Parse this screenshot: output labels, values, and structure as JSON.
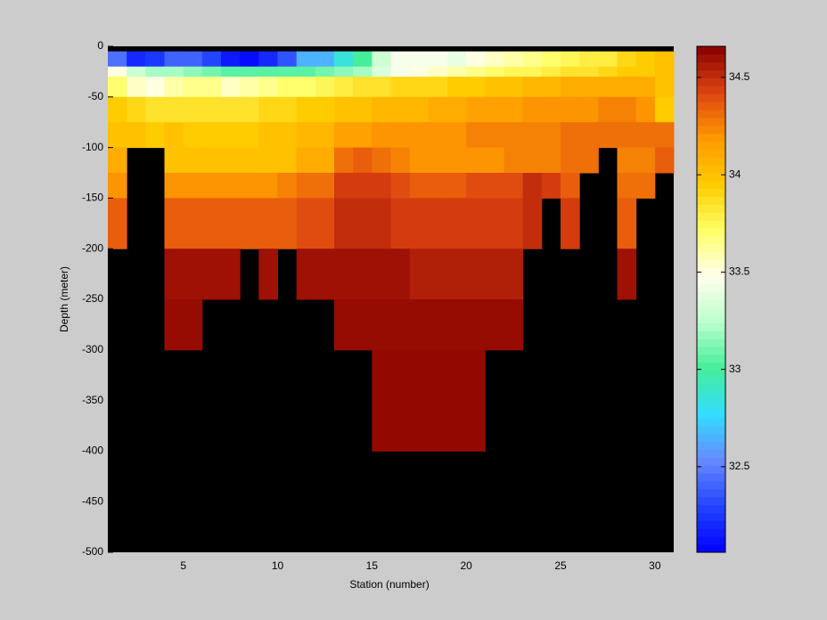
{
  "chart_data": {
    "type": "heatmap",
    "xlabel": "Station (number)",
    "ylabel": "Depth (meter)",
    "x": [
      1,
      2,
      3,
      4,
      5,
      6,
      7,
      8,
      9,
      10,
      11,
      12,
      13,
      14,
      15,
      16,
      17,
      18,
      19,
      20,
      21,
      22,
      23,
      24,
      25,
      26,
      27,
      28,
      29,
      30,
      31
    ],
    "y": [
      0,
      -5,
      -20,
      -30,
      -50,
      -75,
      -100,
      -125,
      -150,
      -200,
      -250,
      -300,
      -400,
      -500
    ],
    "values": [
      [
        null,
        null,
        null,
        null,
        null,
        null,
        null,
        null,
        null,
        null,
        null,
        null,
        null,
        null,
        null,
        null,
        null,
        null,
        null,
        null,
        null,
        null,
        null,
        null,
        null,
        null,
        null,
        null,
        null,
        null
      ],
      [
        32.45,
        32.2,
        32.25,
        32.4,
        32.4,
        32.3,
        32.15,
        32.1,
        32.2,
        32.35,
        32.65,
        32.65,
        32.85,
        33.0,
        33.3,
        33.45,
        33.45,
        33.45,
        33.4,
        33.5,
        33.55,
        33.6,
        33.65,
        33.7,
        33.75,
        33.8,
        33.8,
        33.9,
        33.95,
        34.0
      ],
      [
        33.5,
        33.3,
        33.2,
        33.2,
        33.15,
        33.1,
        33.05,
        33.05,
        33.05,
        33.05,
        33.05,
        33.1,
        33.15,
        33.2,
        33.35,
        33.45,
        33.5,
        33.55,
        33.6,
        33.65,
        33.7,
        33.75,
        33.75,
        33.8,
        33.85,
        33.85,
        33.9,
        33.95,
        33.95,
        34.0
      ],
      [
        33.7,
        33.55,
        33.5,
        33.6,
        33.65,
        33.65,
        33.55,
        33.6,
        33.65,
        33.7,
        33.7,
        33.75,
        33.8,
        33.85,
        33.85,
        33.9,
        33.9,
        33.9,
        33.95,
        33.95,
        34.0,
        34.0,
        34.05,
        34.05,
        34.1,
        34.1,
        34.1,
        34.1,
        34.1,
        34.0
      ],
      [
        33.95,
        33.9,
        33.85,
        33.85,
        33.85,
        33.85,
        33.85,
        33.85,
        33.9,
        33.9,
        33.95,
        33.95,
        34.0,
        34.0,
        34.05,
        34.05,
        34.05,
        34.1,
        34.1,
        34.15,
        34.15,
        34.15,
        34.2,
        34.2,
        34.2,
        34.2,
        34.25,
        34.25,
        34.2,
        33.95
      ],
      [
        34.0,
        34.0,
        33.95,
        34.0,
        33.95,
        33.95,
        33.95,
        33.95,
        34.0,
        34.0,
        34.05,
        34.05,
        34.15,
        34.15,
        34.2,
        34.2,
        34.2,
        34.2,
        34.2,
        34.25,
        34.25,
        34.25,
        34.25,
        34.25,
        34.3,
        34.3,
        34.3,
        34.3,
        34.3,
        34.3
      ],
      [
        34.1,
        null,
        null,
        34.0,
        34.0,
        34.0,
        34.0,
        34.0,
        34.0,
        34.0,
        34.1,
        34.1,
        34.3,
        34.35,
        34.3,
        34.25,
        34.2,
        34.2,
        34.2,
        34.2,
        34.2,
        34.25,
        34.25,
        34.25,
        34.3,
        34.3,
        null,
        34.25,
        34.25,
        34.35
      ],
      [
        34.2,
        null,
        null,
        34.2,
        34.2,
        34.2,
        34.2,
        34.2,
        34.2,
        34.25,
        34.3,
        34.3,
        34.45,
        34.45,
        34.45,
        34.4,
        34.35,
        34.35,
        34.35,
        34.4,
        34.4,
        34.4,
        34.5,
        34.45,
        34.35,
        null,
        null,
        34.3,
        34.3,
        null
      ],
      [
        34.35,
        null,
        null,
        34.35,
        34.35,
        34.35,
        34.35,
        34.35,
        34.35,
        34.35,
        34.4,
        34.4,
        34.5,
        34.5,
        34.5,
        34.45,
        34.45,
        34.45,
        34.45,
        34.45,
        34.45,
        34.45,
        34.5,
        null,
        34.45,
        null,
        null,
        34.35,
        null,
        null
      ],
      [
        null,
        null,
        null,
        34.6,
        34.6,
        34.6,
        34.6,
        null,
        34.6,
        null,
        34.6,
        34.6,
        34.6,
        34.6,
        34.6,
        34.6,
        34.55,
        34.55,
        34.55,
        34.55,
        34.55,
        34.55,
        null,
        null,
        null,
        null,
        null,
        34.6,
        null,
        null
      ],
      [
        null,
        null,
        null,
        34.62,
        34.62,
        null,
        null,
        null,
        null,
        null,
        null,
        null,
        34.62,
        34.62,
        34.62,
        34.62,
        34.62,
        34.62,
        34.62,
        34.62,
        34.62,
        34.62,
        null,
        null,
        null,
        null,
        null,
        null,
        null,
        null
      ],
      [
        null,
        null,
        null,
        null,
        null,
        null,
        null,
        null,
        null,
        null,
        null,
        null,
        null,
        null,
        34.63,
        34.63,
        34.63,
        34.63,
        34.63,
        34.63,
        null,
        null,
        null,
        null,
        null,
        null,
        null,
        null,
        null,
        null
      ],
      [
        null,
        null,
        null,
        null,
        null,
        null,
        null,
        null,
        null,
        null,
        null,
        null,
        null,
        null,
        null,
        null,
        null,
        null,
        null,
        null,
        null,
        null,
        null,
        null,
        null,
        null,
        null,
        null,
        null,
        null
      ]
    ],
    "xlim": [
      1,
      31
    ],
    "ylim": [
      -500,
      0
    ],
    "xticks": [
      5,
      10,
      15,
      20,
      25,
      30
    ],
    "yticks": [
      0,
      -50,
      -100,
      -150,
      -200,
      -250,
      -300,
      -350,
      -400,
      -450,
      -500
    ],
    "clim": [
      32.06,
      34.66
    ],
    "cticks": [
      32.5,
      33,
      33.5,
      34,
      34.5
    ],
    "colormap": [
      "#0000ff",
      "#2244ff",
      "#6688ff",
      "#33ddff",
      "#44ee99",
      "#bbffcc",
      "#ffffee",
      "#ffff66",
      "#ffcc00",
      "#ff9900",
      "#dd4411",
      "#880000"
    ],
    "null_color": "#000000"
  }
}
